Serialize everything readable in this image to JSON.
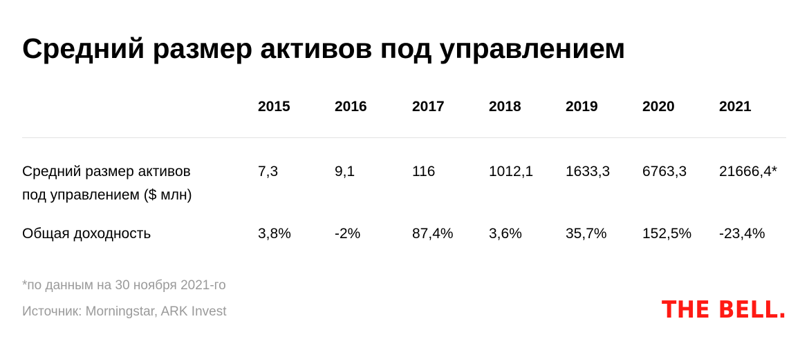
{
  "chart_data": {
    "type": "table",
    "title": "Средний размер активов под управлением",
    "columns": [
      "2015",
      "2016",
      "2017",
      "2018",
      "2019",
      "2020",
      "2021"
    ],
    "rows": [
      {
        "label": [
          "Средний размер активов",
          "под управлением ($ млн)"
        ],
        "values": [
          "7,3",
          "9,1",
          "116",
          "1012,1",
          "1633,3",
          "6763,3",
          "21666,4*"
        ]
      },
      {
        "label": [
          "Общая доходность"
        ],
        "values": [
          "3,8%",
          "-2%",
          "87,4%",
          "3,6%",
          "35,7%",
          "152,5%",
          "-23,4%"
        ]
      }
    ]
  },
  "footnote": "*по данным на 30 ноября 2021-го",
  "source": "Источник: Morningstar, ARK Invest",
  "logo_text": "THE BELL.",
  "colors": {
    "text": "#000000",
    "muted": "#9a9a9a",
    "divider": "#e1e1e1",
    "brand": "#ff1a14"
  }
}
